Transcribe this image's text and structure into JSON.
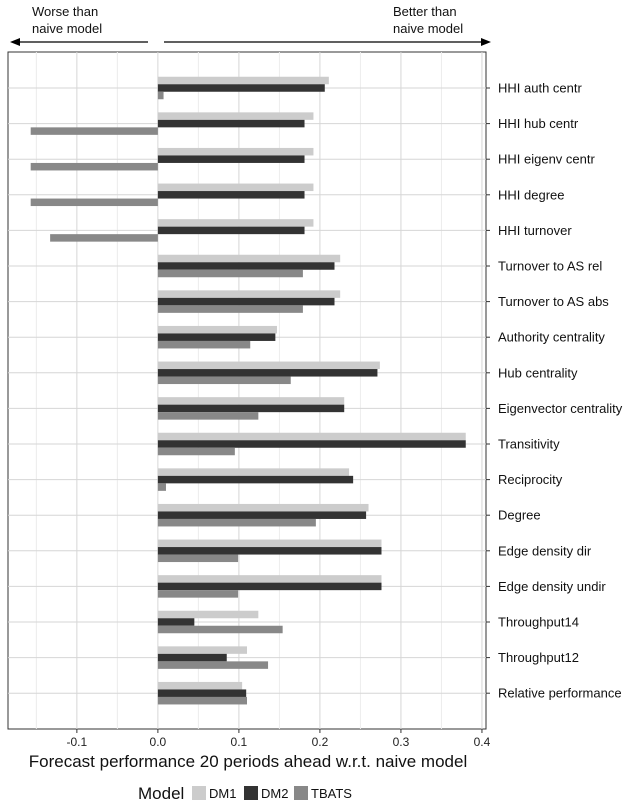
{
  "chart_data": {
    "type": "bar",
    "orientation": "horizontal",
    "title": "",
    "xlabel": "Forecast performance 20 periods ahead w.r.t. naive model",
    "ylabel": "",
    "xlim": [
      -0.185,
      0.405
    ],
    "xticks": [
      "-0.1",
      "0.0",
      "0.1",
      "0.2",
      "0.3",
      "0.4"
    ],
    "annotations": {
      "left": [
        "Worse than",
        "naive model"
      ],
      "right": [
        "Better than",
        "naive model"
      ]
    },
    "legend": {
      "title": "Model",
      "placement": "bottom"
    },
    "categories": [
      "HHI auth centr",
      "HHI hub centr",
      "HHI eigenv centr",
      "HHI degree",
      "HHI turnover",
      "Turnover to AS rel",
      "Turnover to AS abs",
      "Authority centrality",
      "Hub centrality",
      "Eigenvector centrality",
      "Transitivity",
      "Reciprocity",
      "Degree",
      "Edge density dir",
      "Edge density undir",
      "Throughput14",
      "Throughput12",
      "Relative performance"
    ],
    "series": [
      {
        "name": "DM1",
        "color": "#cccccc",
        "values": [
          0.211,
          0.192,
          0.192,
          0.192,
          0.192,
          0.225,
          0.225,
          0.147,
          0.274,
          0.23,
          0.38,
          0.236,
          0.26,
          0.276,
          0.276,
          0.124,
          0.11,
          0.104
        ]
      },
      {
        "name": "DM2",
        "color": "#333333",
        "values": [
          0.206,
          0.181,
          0.181,
          0.181,
          0.181,
          0.218,
          0.218,
          0.145,
          0.271,
          0.23,
          0.38,
          0.241,
          0.257,
          0.276,
          0.276,
          0.045,
          0.085,
          0.109
        ]
      },
      {
        "name": "TBATS",
        "color": "#888888",
        "values": [
          0.007,
          -0.157,
          -0.157,
          -0.157,
          -0.133,
          0.179,
          0.179,
          0.114,
          0.164,
          0.124,
          0.095,
          0.01,
          0.195,
          0.099,
          0.099,
          0.154,
          0.136,
          0.11
        ]
      }
    ],
    "grid": true
  }
}
